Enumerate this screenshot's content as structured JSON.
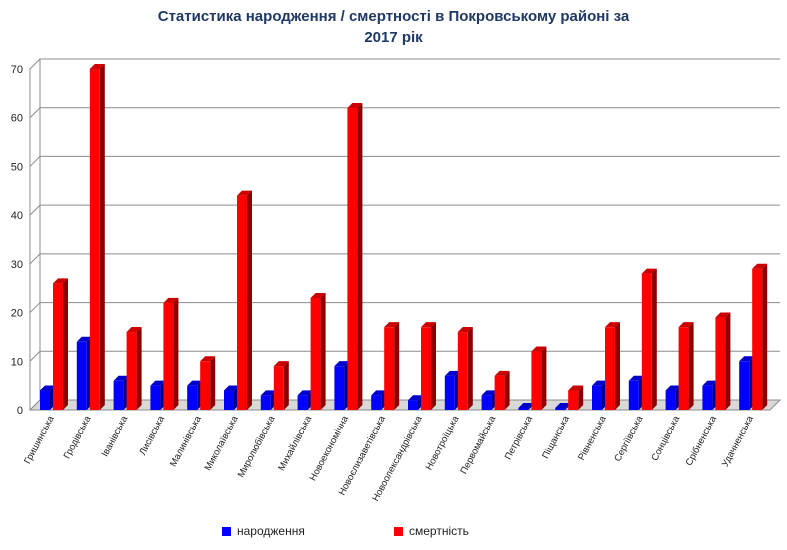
{
  "chart_data": {
    "type": "bar",
    "title_line1": "Статистика народження / смертності в Покровському районі за",
    "title_line2": "2017 рік",
    "categories": [
      "Гришинська",
      "Гродівська",
      "Іванівська",
      "Лисівська",
      "Малинівська",
      "Миколаївська",
      "Миролюбівська",
      "Михайлівська",
      "Новоекономічна",
      "Новоєлизаветівська",
      "Новоолександрівська",
      "Новотроїцька",
      "Первомайська",
      "Петрівська",
      "Піщанська",
      "Рівненська",
      "Сергіївська",
      "Сонцівська",
      "Срібненська",
      "Удачненська"
    ],
    "series": [
      {
        "name": "народження",
        "color": "#0000ff",
        "values": [
          4,
          14,
          6,
          5,
          5,
          4,
          3,
          3,
          9,
          3,
          2,
          7,
          3,
          0,
          0,
          5,
          6,
          4,
          5,
          10
        ]
      },
      {
        "name": "смертність",
        "color": "#ff0000",
        "values": [
          26,
          70,
          16,
          22,
          10,
          44,
          9,
          23,
          62,
          17,
          17,
          16,
          7,
          12,
          4,
          17,
          28,
          17,
          19,
          29
        ]
      }
    ],
    "yticks": [
      "0",
      "10",
      "20",
      "30",
      "40",
      "50",
      "60",
      "70"
    ],
    "ylim": [
      0,
      70
    ],
    "grid": true,
    "legend_position": "bottom"
  }
}
